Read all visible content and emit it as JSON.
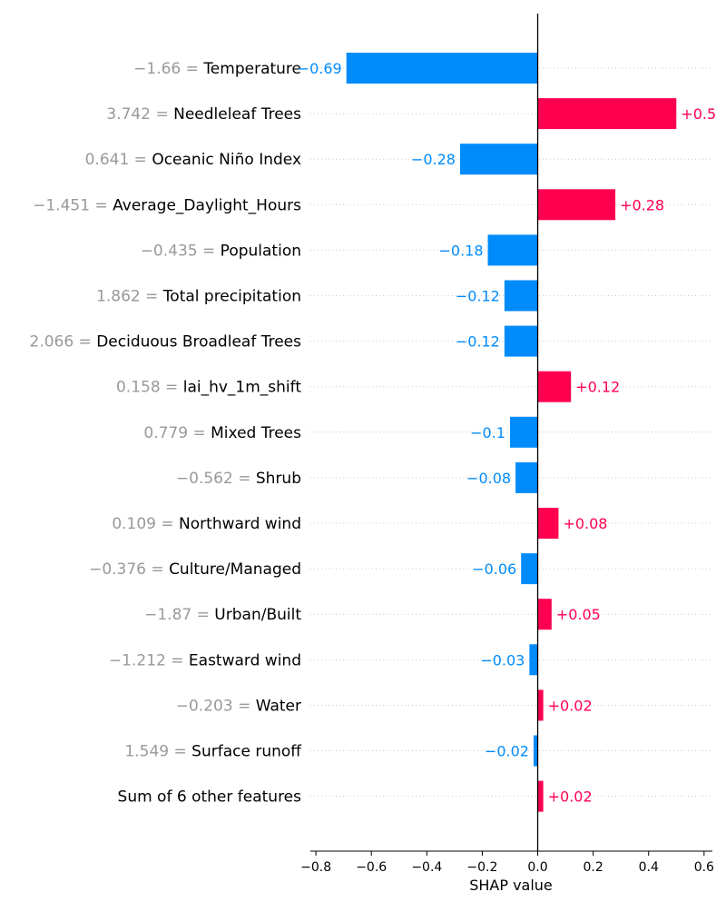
{
  "chart_data": {
    "type": "bar",
    "orientation": "horizontal",
    "xlabel": "SHAP value",
    "xlim": [
      -0.82,
      0.63
    ],
    "xticks": [
      -0.8,
      -0.6,
      -0.4,
      -0.2,
      0.0,
      0.2,
      0.4,
      0.6
    ],
    "xtick_labels": [
      "−0.8",
      "−0.6",
      "−0.4",
      "−0.2",
      "0.0",
      "0.2",
      "0.4",
      "0.6"
    ],
    "grid": "dotted horizontal guide lines per feature",
    "positive_color": "#ff0051",
    "negative_color": "#008bfb",
    "feature_value_color": "#999999",
    "features": [
      {
        "value": "−1.66",
        "name": "Temperature",
        "shap": -0.69,
        "label": "−0.69"
      },
      {
        "value": "3.742",
        "name": "Needleleaf Trees",
        "shap": 0.5,
        "label": "+0.5"
      },
      {
        "value": "0.641",
        "name": "Oceanic Niño Index",
        "shap": -0.28,
        "label": "−0.28"
      },
      {
        "value": "−1.451",
        "name": "Average_Daylight_Hours",
        "shap": 0.28,
        "label": "+0.28"
      },
      {
        "value": "−0.435",
        "name": "Population",
        "shap": -0.18,
        "label": "−0.18"
      },
      {
        "value": "1.862",
        "name": "Total precipitation",
        "shap": -0.12,
        "label": "−0.12"
      },
      {
        "value": "2.066",
        "name": "Deciduous Broadleaf Trees",
        "shap": -0.12,
        "label": "−0.12"
      },
      {
        "value": "0.158",
        "name": "lai_hv_1m_shift",
        "shap": 0.12,
        "label": "+0.12"
      },
      {
        "value": "0.779",
        "name": "Mixed Trees",
        "shap": -0.1,
        "label": "−0.1"
      },
      {
        "value": "−0.562",
        "name": "Shrub",
        "shap": -0.08,
        "label": "−0.08"
      },
      {
        "value": "0.109",
        "name": "Northward wind",
        "shap": 0.075,
        "label": "+0.08"
      },
      {
        "value": "−0.376",
        "name": "Culture/Managed",
        "shap": -0.06,
        "label": "−0.06"
      },
      {
        "value": "−1.87",
        "name": "Urban/Built",
        "shap": 0.05,
        "label": "+0.05"
      },
      {
        "value": "−1.212",
        "name": "Eastward wind",
        "shap": -0.03,
        "label": "−0.03"
      },
      {
        "value": "−0.203",
        "name": "Water",
        "shap": 0.02,
        "label": "+0.02"
      },
      {
        "value": "1.549",
        "name": "Surface runoff",
        "shap": -0.015,
        "label": "−0.02"
      },
      {
        "value": "",
        "name": "Sum of 6 other features",
        "shap": 0.02,
        "label": "+0.02"
      }
    ]
  }
}
